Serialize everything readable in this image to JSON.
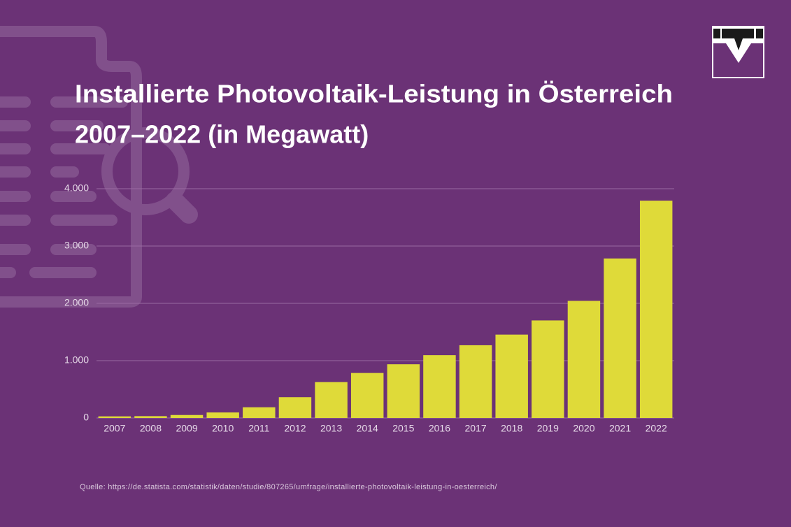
{
  "chart_data": {
    "type": "bar",
    "title": [
      "Installierte Photovoltaik-Leistung in Österreich",
      "2007–2022 (in Megawatt)"
    ],
    "categories": [
      "2007",
      "2008",
      "2009",
      "2010",
      "2011",
      "2012",
      "2013",
      "2014",
      "2015",
      "2016",
      "2017",
      "2018",
      "2019",
      "2020",
      "2021",
      "2022"
    ],
    "values": [
      28,
      32,
      52,
      96,
      187,
      363,
      626,
      785,
      937,
      1096,
      1269,
      1455,
      1702,
      2043,
      2783,
      3792
    ],
    "color": "#dfda39",
    "ylim": [
      0,
      4000
    ],
    "yticks": [
      0,
      {
        "value": 1000,
        "label": "1.000"
      },
      {
        "value": 2000,
        "label": "2.000"
      },
      {
        "value": 3000,
        "label": "3.000"
      },
      {
        "value": 4000,
        "label": "4.000"
      }
    ],
    "grid": true,
    "source": "Quelle: https://de.statista.com/statistik/daten/studie/807265/umfrage/installierte-photovoltaik-leistung-in-oesterreich/"
  }
}
